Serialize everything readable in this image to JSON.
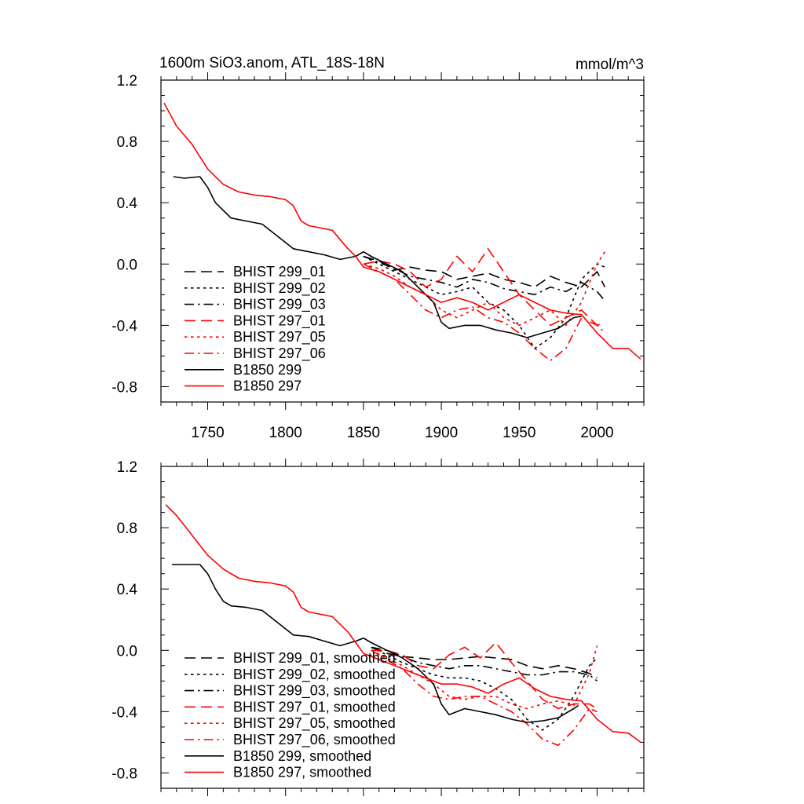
{
  "chart_data": [
    {
      "type": "line",
      "title": "1600m SiO3.anom, ATL_18S-18N",
      "units": "mmol/m^3",
      "xlim": [
        1720,
        2030
      ],
      "ylim": [
        -0.9,
        1.2
      ],
      "xticks": [
        "1750",
        "1800",
        "1850",
        "1900",
        "1950",
        "2000"
      ],
      "yticks": [
        "1.2",
        "0.8",
        "0.4",
        "0.0",
        "-0.4",
        "-0.8"
      ],
      "legend_position": "lower-left",
      "series": [
        {
          "name": "BHIST 299_01",
          "color": "#000000",
          "dash": "dashed",
          "x": [
            1850,
            1860,
            1870,
            1880,
            1890,
            1900,
            1910,
            1920,
            1930,
            1940,
            1950,
            1960,
            1970,
            1980,
            1990,
            2000,
            2005
          ],
          "y": [
            0.05,
            0.02,
            -0.04,
            -0.02,
            -0.04,
            -0.05,
            -0.1,
            -0.08,
            -0.06,
            -0.1,
            -0.12,
            -0.15,
            -0.08,
            -0.12,
            -0.15,
            -0.05,
            -0.15
          ]
        },
        {
          "name": "BHIST 299_02",
          "color": "#000000",
          "dash": "dotted",
          "x": [
            1850,
            1860,
            1870,
            1880,
            1890,
            1900,
            1910,
            1920,
            1930,
            1940,
            1950,
            1960,
            1970,
            1980,
            1990,
            2000,
            2005
          ],
          "y": [
            0.05,
            0.0,
            -0.05,
            -0.1,
            -0.15,
            -0.2,
            -0.18,
            -0.15,
            -0.25,
            -0.3,
            -0.4,
            -0.55,
            -0.48,
            -0.35,
            -0.1,
            0.0,
            -0.02
          ]
        },
        {
          "name": "BHIST 299_03",
          "color": "#000000",
          "dash": "dashdot",
          "x": [
            1850,
            1860,
            1870,
            1880,
            1890,
            1900,
            1910,
            1920,
            1930,
            1940,
            1950,
            1960,
            1970,
            1980,
            1990,
            2000,
            2005
          ],
          "y": [
            0.05,
            0.01,
            -0.03,
            -0.08,
            -0.1,
            -0.12,
            -0.15,
            -0.1,
            -0.12,
            -0.16,
            -0.18,
            -0.2,
            -0.15,
            -0.18,
            -0.12,
            -0.18,
            -0.24
          ]
        },
        {
          "name": "BHIST 297_01",
          "color": "#ff0000",
          "dash": "dashed",
          "x": [
            1850,
            1860,
            1870,
            1880,
            1890,
            1900,
            1910,
            1920,
            1930,
            1940,
            1950,
            1960,
            1970,
            1980,
            1990,
            2000,
            2005
          ],
          "y": [
            0.0,
            0.02,
            0.0,
            -0.05,
            -0.15,
            -0.1,
            0.05,
            -0.05,
            0.1,
            -0.05,
            -0.2,
            -0.3,
            -0.4,
            -0.35,
            -0.3,
            -0.4,
            -0.38
          ]
        },
        {
          "name": "BHIST 297_05",
          "color": "#ff0000",
          "dash": "dotted",
          "x": [
            1850,
            1860,
            1870,
            1880,
            1890,
            1900,
            1910,
            1920,
            1930,
            1940,
            1950,
            1960,
            1970,
            1980,
            1990,
            2000,
            2005
          ],
          "y": [
            0.0,
            -0.03,
            -0.08,
            -0.15,
            -0.2,
            -0.3,
            -0.35,
            -0.3,
            -0.25,
            -0.35,
            -0.4,
            -0.35,
            -0.3,
            -0.4,
            -0.25,
            0.0,
            0.08
          ]
        },
        {
          "name": "BHIST 297_06",
          "color": "#ff0000",
          "dash": "dashdot",
          "x": [
            1850,
            1860,
            1870,
            1880,
            1890,
            1900,
            1910,
            1920,
            1930,
            1940,
            1950,
            1960,
            1970,
            1980,
            1990,
            2000,
            2005
          ],
          "y": [
            0.0,
            -0.05,
            -0.1,
            -0.2,
            -0.3,
            -0.35,
            -0.3,
            -0.28,
            -0.35,
            -0.38,
            -0.45,
            -0.55,
            -0.63,
            -0.55,
            -0.35,
            -0.4,
            -0.45
          ]
        },
        {
          "name": "B1850 299",
          "color": "#000000",
          "dash": "solid",
          "x": [
            1728,
            1735,
            1745,
            1750,
            1755,
            1760,
            1765,
            1775,
            1785,
            1795,
            1805,
            1815,
            1825,
            1835,
            1845,
            1850,
            1855,
            1865,
            1875,
            1885,
            1895,
            1900,
            1905,
            1915,
            1925,
            1935,
            1945,
            1955,
            1965,
            1975,
            1985,
            1990
          ],
          "y": [
            0.57,
            0.56,
            0.57,
            0.5,
            0.4,
            0.35,
            0.3,
            0.28,
            0.26,
            0.18,
            0.1,
            0.08,
            0.06,
            0.03,
            0.05,
            0.08,
            0.05,
            0.0,
            -0.05,
            -0.15,
            -0.25,
            -0.38,
            -0.42,
            -0.4,
            -0.4,
            -0.43,
            -0.45,
            -0.48,
            -0.45,
            -0.42,
            -0.35,
            -0.34
          ]
        },
        {
          "name": "B1850 297",
          "color": "#ff0000",
          "dash": "solid",
          "x": [
            1722,
            1730,
            1740,
            1750,
            1760,
            1770,
            1780,
            1790,
            1800,
            1805,
            1810,
            1815,
            1820,
            1830,
            1840,
            1845,
            1850,
            1860,
            1870,
            1880,
            1890,
            1900,
            1910,
            1920,
            1930,
            1940,
            1950,
            1960,
            1970,
            1980,
            1990,
            2000,
            2010,
            2020,
            2028
          ],
          "y": [
            1.05,
            0.9,
            0.78,
            0.62,
            0.52,
            0.47,
            0.45,
            0.44,
            0.42,
            0.38,
            0.28,
            0.25,
            0.24,
            0.22,
            0.1,
            0.05,
            -0.02,
            -0.05,
            -0.1,
            -0.15,
            -0.2,
            -0.25,
            -0.22,
            -0.25,
            -0.3,
            -0.25,
            -0.2,
            -0.25,
            -0.3,
            -0.32,
            -0.33,
            -0.45,
            -0.55,
            -0.55,
            -0.62
          ]
        }
      ]
    },
    {
      "type": "line",
      "xlim": [
        1720,
        2030
      ],
      "ylim": [
        -0.9,
        1.2
      ],
      "yticks": [
        "1.2",
        "0.8",
        "0.4",
        "0.0",
        "-0.4",
        "-0.8"
      ],
      "legend_position": "lower-left",
      "series": [
        {
          "name": "BHIST 299_01, smoothed",
          "color": "#000000",
          "dash": "dashed",
          "x": [
            1855,
            1865,
            1875,
            1885,
            1895,
            1905,
            1915,
            1925,
            1935,
            1945,
            1955,
            1965,
            1975,
            1985,
            1995,
            2000
          ],
          "y": [
            0.02,
            -0.02,
            -0.04,
            -0.05,
            -0.06,
            -0.06,
            -0.05,
            -0.04,
            -0.05,
            -0.06,
            -0.1,
            -0.12,
            -0.1,
            -0.12,
            -0.15,
            -0.18
          ]
        },
        {
          "name": "BHIST 299_02, smoothed",
          "color": "#000000",
          "dash": "dotted",
          "x": [
            1855,
            1865,
            1875,
            1885,
            1895,
            1905,
            1915,
            1925,
            1935,
            1945,
            1955,
            1965,
            1975,
            1985,
            1995,
            2000
          ],
          "y": [
            0.02,
            -0.03,
            -0.08,
            -0.12,
            -0.16,
            -0.18,
            -0.18,
            -0.2,
            -0.25,
            -0.32,
            -0.45,
            -0.52,
            -0.45,
            -0.3,
            -0.1,
            -0.05
          ]
        },
        {
          "name": "BHIST 299_03, smoothed",
          "color": "#000000",
          "dash": "dashdot",
          "x": [
            1855,
            1865,
            1875,
            1885,
            1895,
            1905,
            1915,
            1925,
            1935,
            1945,
            1955,
            1965,
            1975,
            1985,
            1995,
            2000
          ],
          "y": [
            0.02,
            0.0,
            -0.04,
            -0.08,
            -0.1,
            -0.12,
            -0.1,
            -0.1,
            -0.12,
            -0.14,
            -0.16,
            -0.16,
            -0.14,
            -0.14,
            -0.16,
            -0.2
          ]
        },
        {
          "name": "BHIST 297_01, smoothed",
          "color": "#ff0000",
          "dash": "dashed",
          "x": [
            1855,
            1865,
            1875,
            1885,
            1895,
            1905,
            1915,
            1925,
            1935,
            1945,
            1955,
            1965,
            1975,
            1985,
            1995,
            2000
          ],
          "y": [
            0.0,
            0.0,
            -0.03,
            -0.1,
            -0.12,
            -0.03,
            0.02,
            -0.05,
            0.05,
            -0.08,
            -0.2,
            -0.32,
            -0.38,
            -0.35,
            -0.35,
            -0.38
          ]
        },
        {
          "name": "BHIST 297_05, smoothed",
          "color": "#ff0000",
          "dash": "dotted",
          "x": [
            1855,
            1865,
            1875,
            1885,
            1895,
            1905,
            1915,
            1925,
            1935,
            1945,
            1955,
            1965,
            1975,
            1985,
            1995,
            2000
          ],
          "y": [
            0.0,
            -0.05,
            -0.1,
            -0.16,
            -0.22,
            -0.3,
            -0.32,
            -0.3,
            -0.3,
            -0.35,
            -0.38,
            -0.35,
            -0.33,
            -0.36,
            -0.15,
            0.03
          ]
        },
        {
          "name": "BHIST 297_06, smoothed",
          "color": "#ff0000",
          "dash": "dashdot",
          "x": [
            1855,
            1865,
            1875,
            1885,
            1895,
            1905,
            1915,
            1925,
            1935,
            1945,
            1955,
            1965,
            1975,
            1985,
            1995,
            2000
          ],
          "y": [
            0.0,
            -0.06,
            -0.12,
            -0.22,
            -0.3,
            -0.32,
            -0.3,
            -0.3,
            -0.35,
            -0.4,
            -0.48,
            -0.58,
            -0.62,
            -0.52,
            -0.38,
            -0.4
          ]
        },
        {
          "name": "B1850 299, smoothed",
          "color": "#000000",
          "dash": "solid",
          "x": [
            1727,
            1735,
            1745,
            1750,
            1755,
            1760,
            1765,
            1775,
            1785,
            1795,
            1805,
            1815,
            1825,
            1835,
            1845,
            1850,
            1855,
            1865,
            1875,
            1885,
            1895,
            1900,
            1905,
            1915,
            1925,
            1935,
            1945,
            1955,
            1965,
            1975,
            1985,
            1988
          ],
          "y": [
            0.56,
            0.56,
            0.56,
            0.5,
            0.4,
            0.32,
            0.29,
            0.28,
            0.26,
            0.18,
            0.1,
            0.09,
            0.06,
            0.03,
            0.06,
            0.08,
            0.05,
            0.0,
            -0.05,
            -0.12,
            -0.22,
            -0.35,
            -0.42,
            -0.38,
            -0.4,
            -0.42,
            -0.45,
            -0.47,
            -0.46,
            -0.44,
            -0.38,
            -0.36
          ]
        },
        {
          "name": "B1850 297, smoothed",
          "color": "#ff0000",
          "dash": "solid",
          "x": [
            1723,
            1730,
            1740,
            1750,
            1760,
            1770,
            1780,
            1790,
            1800,
            1805,
            1810,
            1815,
            1820,
            1830,
            1840,
            1845,
            1850,
            1860,
            1870,
            1880,
            1890,
            1900,
            1910,
            1920,
            1930,
            1940,
            1950,
            1960,
            1970,
            1980,
            1990,
            2000,
            2010,
            2020,
            2028
          ],
          "y": [
            0.95,
            0.88,
            0.75,
            0.62,
            0.53,
            0.47,
            0.45,
            0.44,
            0.42,
            0.38,
            0.28,
            0.25,
            0.24,
            0.22,
            0.12,
            0.05,
            -0.02,
            -0.06,
            -0.1,
            -0.14,
            -0.18,
            -0.22,
            -0.22,
            -0.24,
            -0.28,
            -0.22,
            -0.18,
            -0.25,
            -0.3,
            -0.32,
            -0.33,
            -0.45,
            -0.53,
            -0.54,
            -0.6
          ]
        }
      ]
    }
  ]
}
